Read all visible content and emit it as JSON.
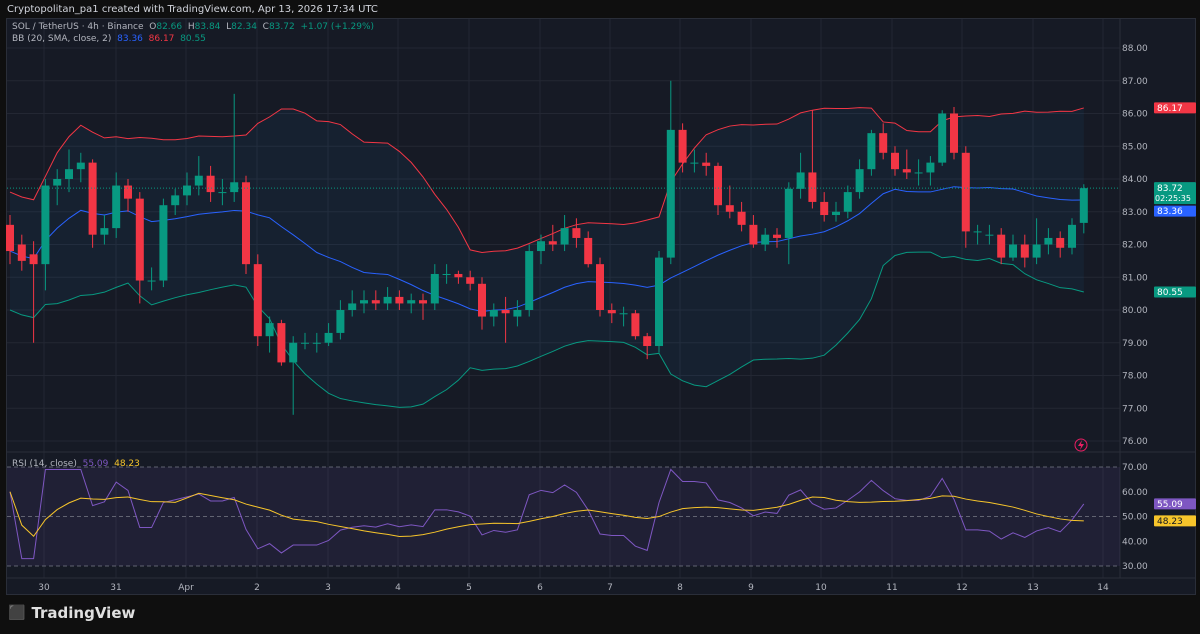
{
  "caption": "Cryptopolitan_pa1 created with TradingView.com, Apr 13, 2026 17:34 UTC",
  "legend": {
    "symbol": "SOL / TetherUS · 4h · Binance",
    "o_label": "O",
    "o": "82.66",
    "h_label": "H",
    "h": "83.84",
    "l_label": "L",
    "l": "82.34",
    "c_label": "C",
    "c": "83.72",
    "change": "+1.07 (+1.29%)"
  },
  "bb": {
    "label": "BB (20, SMA, close, 2)",
    "basis": "83.36",
    "upper": "86.17",
    "lower": "80.55"
  },
  "rsi": {
    "label": "RSI (14, close)",
    "value": "55.09",
    "ma": "48.23",
    "ticks": [
      "70.00",
      "60.00",
      "50.00",
      "40.00",
      "30.00"
    ]
  },
  "price_ticks": [
    "88.00",
    "87.00",
    "86.00",
    "85.00",
    "84.00",
    "83.00",
    "82.00",
    "81.00",
    "80.00",
    "79.00",
    "78.00",
    "77.00",
    "76.00"
  ],
  "price_labels": {
    "last": "83.72",
    "countdown": "02:25:35"
  },
  "dates": [
    "30",
    "31",
    "Apr",
    "2",
    "3",
    "4",
    "5",
    "6",
    "7",
    "8",
    "9",
    "10",
    "11",
    "12",
    "13",
    "14"
  ],
  "brand": "TradingView",
  "colors": {
    "up": "#089981",
    "down": "#f23645",
    "basis": "#2962ff",
    "upper": "#f23645",
    "lower": "#089981",
    "rsi": "#7e57c2",
    "rsi_ma": "#f7c52b"
  },
  "chart_data": {
    "type": "candlestick",
    "interval": "4h",
    "ylim": [
      76,
      88
    ],
    "ohlc": [
      [
        82.6,
        82.9,
        81.4,
        81.8
      ],
      [
        82.0,
        82.3,
        81.2,
        81.5
      ],
      [
        81.7,
        82.1,
        79.0,
        81.4
      ],
      [
        81.4,
        84.0,
        80.6,
        83.8
      ],
      [
        83.8,
        84.3,
        83.2,
        84.0
      ],
      [
        84.0,
        84.9,
        83.6,
        84.3
      ],
      [
        84.3,
        84.8,
        83.9,
        84.5
      ],
      [
        84.5,
        84.6,
        81.9,
        82.3
      ],
      [
        82.3,
        82.9,
        82.0,
        82.5
      ],
      [
        82.5,
        84.2,
        82.2,
        83.8
      ],
      [
        83.8,
        84.0,
        83.0,
        83.4
      ],
      [
        83.4,
        83.6,
        80.2,
        80.9
      ],
      [
        80.9,
        81.3,
        80.6,
        80.9
      ],
      [
        80.9,
        83.4,
        80.7,
        83.2
      ],
      [
        83.2,
        83.7,
        82.9,
        83.5
      ],
      [
        83.5,
        84.2,
        83.2,
        83.8
      ],
      [
        83.8,
        84.7,
        83.5,
        84.1
      ],
      [
        84.1,
        84.4,
        83.3,
        83.6
      ],
      [
        83.6,
        84.0,
        83.2,
        83.6
      ],
      [
        83.6,
        86.6,
        83.3,
        83.9
      ],
      [
        83.9,
        84.1,
        81.1,
        81.4
      ],
      [
        81.4,
        81.7,
        78.9,
        79.2
      ],
      [
        79.2,
        79.8,
        78.7,
        79.6
      ],
      [
        79.6,
        79.7,
        78.3,
        78.4
      ],
      [
        78.4,
        79.2,
        76.8,
        79.0
      ],
      [
        79.0,
        79.3,
        78.8,
        79.0
      ],
      [
        79.0,
        79.3,
        78.7,
        79.0
      ],
      [
        79.0,
        79.6,
        78.9,
        79.3
      ],
      [
        79.3,
        80.3,
        79.1,
        80.0
      ],
      [
        80.0,
        80.6,
        79.8,
        80.2
      ],
      [
        80.2,
        80.6,
        79.9,
        80.3
      ],
      [
        80.3,
        80.6,
        80.0,
        80.2
      ],
      [
        80.2,
        80.7,
        80.0,
        80.4
      ],
      [
        80.4,
        80.6,
        80.0,
        80.2
      ],
      [
        80.2,
        80.5,
        79.9,
        80.3
      ],
      [
        80.3,
        80.5,
        79.7,
        80.2
      ],
      [
        80.2,
        81.4,
        80.0,
        81.1
      ],
      [
        81.1,
        81.4,
        80.8,
        81.1
      ],
      [
        81.1,
        81.2,
        80.8,
        81.0
      ],
      [
        81.0,
        81.2,
        80.6,
        80.8
      ],
      [
        80.8,
        81.0,
        79.4,
        79.8
      ],
      [
        79.8,
        80.2,
        79.5,
        80.0
      ],
      [
        80.0,
        80.4,
        79.0,
        79.9
      ],
      [
        79.8,
        80.3,
        79.5,
        80.0
      ],
      [
        80.0,
        82.0,
        79.8,
        81.8
      ],
      [
        81.8,
        82.3,
        81.4,
        82.1
      ],
      [
        82.1,
        82.6,
        81.8,
        82.0
      ],
      [
        82.0,
        82.9,
        81.8,
        82.5
      ],
      [
        82.5,
        82.8,
        81.9,
        82.2
      ],
      [
        82.2,
        82.4,
        81.3,
        81.4
      ],
      [
        81.4,
        81.6,
        79.8,
        80.0
      ],
      [
        80.0,
        80.2,
        79.6,
        79.9
      ],
      [
        79.9,
        80.1,
        79.5,
        79.9
      ],
      [
        79.9,
        80.0,
        79.1,
        79.2
      ],
      [
        79.2,
        79.3,
        78.5,
        78.9
      ],
      [
        78.9,
        81.8,
        78.7,
        81.6
      ],
      [
        81.6,
        87.0,
        81.4,
        85.5
      ],
      [
        85.5,
        85.7,
        84.2,
        84.5
      ],
      [
        84.5,
        84.9,
        84.2,
        84.5
      ],
      [
        84.5,
        84.8,
        84.1,
        84.4
      ],
      [
        84.4,
        84.5,
        82.9,
        83.2
      ],
      [
        83.2,
        83.8,
        82.8,
        83.0
      ],
      [
        83.0,
        83.3,
        82.4,
        82.6
      ],
      [
        82.6,
        82.9,
        81.9,
        82.0
      ],
      [
        82.0,
        82.5,
        81.8,
        82.3
      ],
      [
        82.3,
        82.5,
        81.9,
        82.2
      ],
      [
        82.2,
        83.9,
        81.4,
        83.7
      ],
      [
        83.7,
        84.8,
        83.4,
        84.2
      ],
      [
        84.2,
        86.1,
        83.1,
        83.3
      ],
      [
        83.3,
        83.6,
        82.7,
        82.9
      ],
      [
        82.9,
        83.3,
        82.7,
        83.0
      ],
      [
        83.0,
        83.8,
        82.8,
        83.6
      ],
      [
        83.6,
        84.6,
        83.4,
        84.3
      ],
      [
        84.3,
        85.5,
        84.1,
        85.4
      ],
      [
        85.4,
        85.7,
        84.6,
        84.8
      ],
      [
        84.8,
        85.0,
        84.1,
        84.3
      ],
      [
        84.3,
        84.9,
        84.0,
        84.2
      ],
      [
        84.2,
        84.6,
        83.8,
        84.2
      ],
      [
        84.2,
        84.7,
        83.8,
        84.5
      ],
      [
        84.5,
        86.1,
        84.4,
        86.0
      ],
      [
        86.0,
        86.2,
        84.6,
        84.8
      ],
      [
        84.8,
        85.0,
        81.9,
        82.4
      ],
      [
        82.4,
        82.6,
        82.0,
        82.4
      ],
      [
        82.3,
        82.6,
        82.0,
        82.3
      ],
      [
        82.3,
        82.5,
        81.4,
        81.6
      ],
      [
        81.6,
        82.3,
        81.5,
        82.0
      ],
      [
        82.0,
        82.3,
        81.3,
        81.6
      ],
      [
        81.6,
        82.8,
        81.4,
        82.0
      ],
      [
        82.0,
        82.5,
        81.7,
        82.2
      ],
      [
        82.2,
        82.4,
        81.6,
        81.9
      ],
      [
        81.9,
        82.8,
        81.7,
        82.6
      ],
      [
        82.66,
        83.84,
        82.34,
        83.72
      ]
    ]
  }
}
